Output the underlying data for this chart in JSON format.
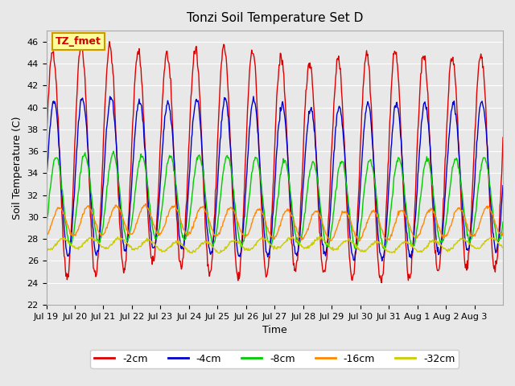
{
  "title": "Tonzi Soil Temperature Set D",
  "xlabel": "Time",
  "ylabel": "Soil Temperature (C)",
  "ylim": [
    22,
    47
  ],
  "yticks": [
    22,
    24,
    26,
    28,
    30,
    32,
    34,
    36,
    38,
    40,
    42,
    44,
    46
  ],
  "bg_color": "#e8e8e8",
  "plot_bg_color": "#e8e8e8",
  "grid_color": "white",
  "legend_label": "TZ_fmet",
  "legend_bg": "#ffff99",
  "legend_border": "#cc9900",
  "series_colors": {
    "-2cm": "#dd0000",
    "-4cm": "#0000cc",
    "-8cm": "#00cc00",
    "-16cm": "#ff8800",
    "-32cm": "#cccc00"
  },
  "x_tick_labels": [
    "Jul 19",
    "Jul 20",
    "Jul 21",
    "Jul 22",
    "Jul 23",
    "Jul 24",
    "Jul 25",
    "Jul 26",
    "Jul 27",
    "Jul 28",
    "Jul 29",
    "Jul 30",
    "Jul 31",
    "Aug 1",
    "Aug 2",
    "Aug 3"
  ],
  "time_days": 16,
  "points_per_day": 48
}
